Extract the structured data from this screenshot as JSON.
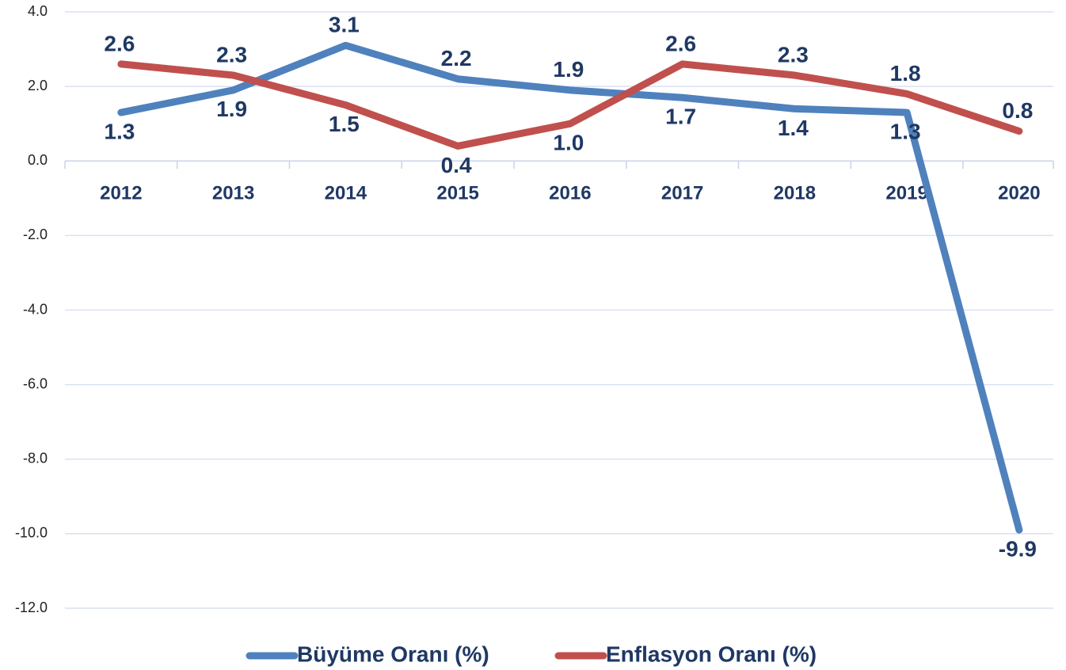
{
  "chart_data": {
    "type": "line",
    "categories": [
      "2012",
      "2013",
      "2014",
      "2015",
      "2016",
      "2017",
      "2018",
      "2019",
      "2020"
    ],
    "series": [
      {
        "name": "Büyüme Oranı (%)",
        "color": "#4f81bd",
        "values": [
          1.3,
          1.9,
          3.1,
          2.2,
          1.9,
          1.7,
          1.4,
          1.3,
          -9.9
        ]
      },
      {
        "name": "Enflasyon Oranı (%)",
        "color": "#c0504d",
        "values": [
          2.6,
          2.3,
          1.5,
          0.4,
          1.0,
          2.6,
          2.3,
          1.8,
          0.8
        ],
        "value_labels": [
          "2.6",
          "2.3",
          "1.5",
          "0.4",
          "1.0",
          "2.6",
          "2.3",
          "1.8",
          "0.8"
        ]
      }
    ],
    "ylim": [
      -12,
      4
    ],
    "yticks": [
      {
        "value": 4,
        "label": "4.0"
      },
      {
        "value": 2,
        "label": "2.0"
      },
      {
        "value": 0,
        "label": "0.0"
      },
      {
        "value": -2,
        "label": "-2.0"
      },
      {
        "value": -4,
        "label": "-4.0"
      },
      {
        "value": -6,
        "label": "-6.0"
      },
      {
        "value": -8,
        "label": "-8.0"
      },
      {
        "value": -10,
        "label": "-10.0"
      },
      {
        "value": -12,
        "label": "-12.0"
      }
    ],
    "grid": true,
    "legend": "bottom"
  }
}
